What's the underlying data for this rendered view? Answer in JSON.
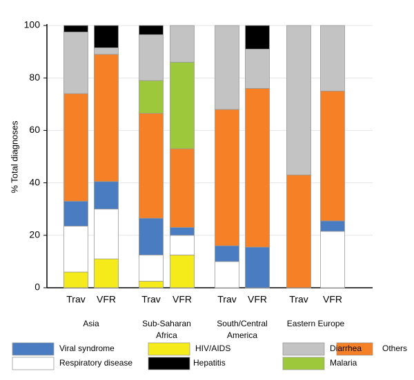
{
  "chart_data": {
    "type": "stacked_bar",
    "ylabel": "% Total diagnoses",
    "categories": [
      "Trav",
      "VFR",
      "Trav",
      "VFR",
      "Trav",
      "VFR",
      "Trav",
      "VFR"
    ],
    "groups": [
      [
        "Asia"
      ],
      [
        "Sub-Saharan",
        "Africa"
      ],
      [
        "South/Central",
        "America"
      ],
      [
        "Eastern Europe"
      ]
    ],
    "series": [
      {
        "name": "HIV/AIDS",
        "color": "#f5eb1a",
        "values": [
          6,
          11,
          2.5,
          12.5,
          0,
          0,
          0,
          0
        ]
      },
      {
        "name": "Respiratory disease",
        "color": "#ffffff",
        "values": [
          17.5,
          19,
          10,
          7.5,
          10,
          0,
          0,
          21.5
        ]
      },
      {
        "name": "Viral syndrome",
        "color": "#4a7cc1",
        "values": [
          9.5,
          10.5,
          14,
          3,
          6,
          15.5,
          0,
          4
        ]
      },
      {
        "name": "Others",
        "color": "#f58025",
        "values": [
          41,
          48.5,
          40,
          30,
          52,
          60.5,
          43,
          49.5
        ]
      },
      {
        "name": "Malaria",
        "color": "#9dc83c",
        "values": [
          0,
          0,
          12.5,
          33,
          0,
          0,
          0,
          0
        ]
      },
      {
        "name": "Diarrhea",
        "color": "#c3c3c3",
        "values": [
          23.5,
          2.5,
          17.5,
          14,
          32,
          15,
          57,
          25
        ]
      },
      {
        "name": "Hepatitis",
        "color": "#000000",
        "values": [
          2.5,
          8.5,
          3.5,
          0,
          0,
          9,
          0,
          0
        ]
      }
    ],
    "ylim": [
      0,
      100
    ],
    "yticks": [
      0,
      20,
      40,
      60,
      80,
      100
    ],
    "grid": true
  }
}
